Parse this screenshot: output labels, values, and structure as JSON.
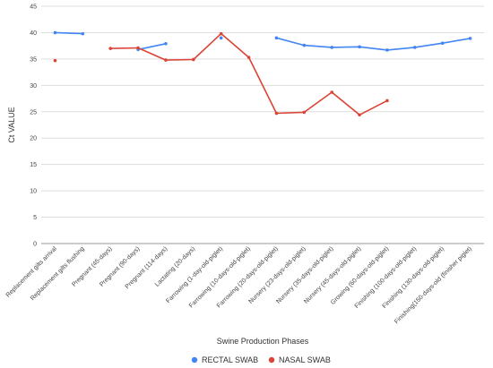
{
  "chart_data": {
    "type": "line",
    "title": "",
    "xlabel": "Swine Production Phases",
    "ylabel": "Ct VALUE",
    "ylim": [
      0,
      45
    ],
    "yticks": [
      0,
      5,
      10,
      15,
      20,
      25,
      30,
      35,
      40,
      45
    ],
    "grid": true,
    "legend_position": "bottom",
    "categories": [
      "Replacement gilts arrival",
      "Replacement gilts flushing",
      "Pregnant (45-days)",
      "Pregnant (90-days)",
      "Pregnant (114-days)",
      "Lactating (20-days)",
      "Farrowing (1-day-old-piglet)",
      "Farrowing (10-days-old-piglet)",
      "Farrowing (20-days-old-piglet)",
      "Nursery (23-days-old-piglet)",
      "Nursery (35-days-old-piglet)",
      "Nursery (45-days-old-piglet)",
      "Growing (60-days-old-piglet)",
      "Finishing (100-days-old-piglet)",
      "Finishing (130-days-old-piglet)",
      "Finishing(150-days-old (finisher piglet)"
    ],
    "series": [
      {
        "name": "RECTAL SWAB",
        "color": "#4285f4",
        "values": [
          40.0,
          39.8,
          null,
          36.8,
          37.9,
          null,
          39.0,
          null,
          39.0,
          37.6,
          37.2,
          37.3,
          36.7,
          37.2,
          38.0,
          38.9
        ]
      },
      {
        "name": "NASAL SWAB",
        "color": "#db4437",
        "values": [
          34.7,
          null,
          37.0,
          37.1,
          34.8,
          34.9,
          39.8,
          35.3,
          24.7,
          24.9,
          28.7,
          24.4,
          27.1,
          null,
          null,
          null
        ]
      }
    ]
  }
}
